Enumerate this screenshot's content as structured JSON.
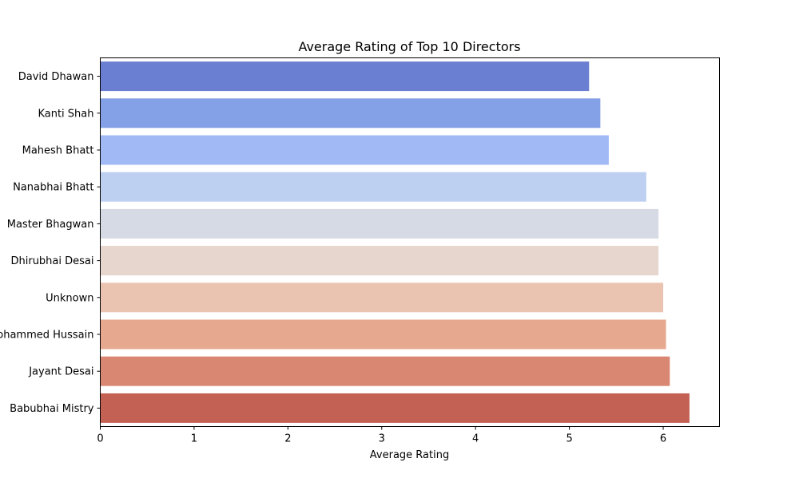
{
  "chart_data": {
    "type": "bar",
    "orientation": "horizontal",
    "title": "Average Rating of Top 10 Directors",
    "xlabel": "Average Rating",
    "ylabel": "",
    "categories": [
      "David Dhawan",
      "Kanti Shah",
      "Mahesh Bhatt",
      "Nanabhai Bhatt",
      "Master Bhagwan",
      "Dhirubhai Desai",
      "Unknown",
      "Mohammed Hussain",
      "Jayant Desai",
      "Babubhai Mistry"
    ],
    "values": [
      5.21,
      5.33,
      5.42,
      5.82,
      5.95,
      5.95,
      6.0,
      6.03,
      6.07,
      6.28
    ],
    "xlim": [
      0,
      6.6
    ],
    "xticks": [
      0,
      1,
      2,
      3,
      4,
      5,
      6
    ],
    "grid": false,
    "colors": [
      "#6a7fd2",
      "#84a0e6",
      "#a1baf5",
      "#bdd0f2",
      "#d5dae5",
      "#e6d6ce",
      "#eac4b1",
      "#e6a88f",
      "#d98772",
      "#c46155"
    ]
  }
}
